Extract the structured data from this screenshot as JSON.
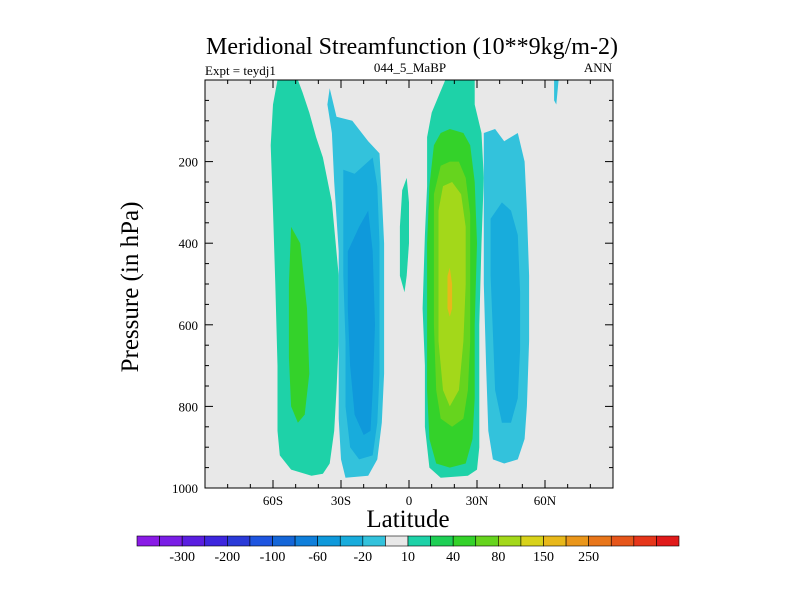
{
  "chart_data": {
    "type": "heatmap",
    "title": "Meridional Streamfunction (10**9kg/m-2)",
    "left_subtitle": "Expt = teydj1",
    "center_subtitle": "044_5_MaBP",
    "right_subtitle": "ANN",
    "xlabel": "Latitude",
    "ylabel": "Pressure (in hPa)",
    "xlim": [
      -90,
      90
    ],
    "ylim": [
      0,
      1000
    ],
    "y_inverted": true,
    "x_ticks": [
      {
        "value": -60,
        "label": "60S"
      },
      {
        "value": -30,
        "label": "30S"
      },
      {
        "value": 0,
        "label": "0"
      },
      {
        "value": 30,
        "label": "30N"
      },
      {
        "value": 60,
        "label": "60N"
      }
    ],
    "y_ticks": [
      200,
      400,
      600,
      800,
      1000
    ],
    "colorbar": {
      "colors": [
        "#8a1be6",
        "#7a1ee6",
        "#5a1ee0",
        "#3d26de",
        "#2a3ad8",
        "#1e55e0",
        "#1466d8",
        "#0f7fdb",
        "#0f99db",
        "#18acdc",
        "#33c2dc",
        "#e8e8e8",
        "#1ed2a8",
        "#1ecf55",
        "#34d22a",
        "#66d41e",
        "#a3d81a",
        "#d8d21a",
        "#e8b81a",
        "#ea961a",
        "#e8761a",
        "#e6561a",
        "#e6361a",
        "#e01a1a"
      ],
      "labels": [
        "-300",
        "-200",
        "-100",
        "-60",
        "-20",
        "10",
        "40",
        "80",
        "150",
        "250"
      ]
    },
    "contours": [
      {
        "color": "#1ed2a8",
        "points": [
          [
            -58,
            0
          ],
          [
            -49,
            0
          ],
          [
            -47,
            30
          ],
          [
            -44,
            80
          ],
          [
            -41,
            140
          ],
          [
            -38,
            190
          ],
          [
            -34,
            300
          ],
          [
            -31,
            480
          ],
          [
            -31,
            640
          ],
          [
            -32,
            760
          ],
          [
            -33,
            860
          ],
          [
            -35,
            940
          ],
          [
            -38,
            965
          ],
          [
            -43,
            970
          ],
          [
            -52,
            955
          ],
          [
            -57,
            920
          ],
          [
            -58,
            860
          ],
          [
            -58,
            700
          ],
          [
            -59,
            500
          ],
          [
            -60,
            320
          ],
          [
            -61,
            160
          ],
          [
            -60,
            60
          ]
        ]
      },
      {
        "color": "#34d22a",
        "points": [
          [
            -52,
            360
          ],
          [
            -48,
            400
          ],
          [
            -45,
            560
          ],
          [
            -44,
            720
          ],
          [
            -46,
            820
          ],
          [
            -49,
            840
          ],
          [
            -52,
            800
          ],
          [
            -53,
            680
          ],
          [
            -53,
            500
          ]
        ]
      },
      {
        "color": "#33c2dc",
        "points": [
          [
            -35,
            20
          ],
          [
            -32,
            90
          ],
          [
            -25,
            100
          ],
          [
            -18,
            150
          ],
          [
            -13,
            180
          ],
          [
            -12,
            280
          ],
          [
            -11,
            400
          ],
          [
            -11,
            560
          ],
          [
            -11,
            720
          ],
          [
            -12,
            840
          ],
          [
            -14,
            930
          ],
          [
            -18,
            970
          ],
          [
            -28,
            975
          ],
          [
            -30,
            930
          ],
          [
            -31,
            830
          ],
          [
            -31,
            600
          ],
          [
            -31,
            420
          ],
          [
            -33,
            250
          ],
          [
            -34,
            130
          ],
          [
            -36,
            60
          ]
        ]
      },
      {
        "color": "#18acdc",
        "points": [
          [
            -29,
            220
          ],
          [
            -24,
            230
          ],
          [
            -16,
            190
          ],
          [
            -14,
            260
          ],
          [
            -13,
            400
          ],
          [
            -13,
            560
          ],
          [
            -13,
            720
          ],
          [
            -14,
            840
          ],
          [
            -16,
            920
          ],
          [
            -22,
            930
          ],
          [
            -26,
            900
          ],
          [
            -28,
            800
          ],
          [
            -28,
            640
          ],
          [
            -29,
            480
          ],
          [
            -29,
            340
          ]
        ]
      },
      {
        "color": "#0f99db",
        "points": [
          [
            -27,
            420
          ],
          [
            -22,
            360
          ],
          [
            -18,
            320
          ],
          [
            -16,
            420
          ],
          [
            -15,
            600
          ],
          [
            -16,
            760
          ],
          [
            -17,
            860
          ],
          [
            -20,
            870
          ],
          [
            -24,
            820
          ],
          [
            -26,
            700
          ],
          [
            -27,
            560
          ]
        ]
      },
      {
        "color": "#1ed2a8",
        "points": [
          [
            -4,
            360
          ],
          [
            -3,
            270
          ],
          [
            -1,
            240
          ],
          [
            0,
            300
          ],
          [
            0,
            400
          ],
          [
            -1,
            480
          ],
          [
            -2,
            520
          ],
          [
            -4,
            480
          ]
        ]
      },
      {
        "color": "#1ed2a8",
        "points": [
          [
            7,
            380
          ],
          [
            8,
            260
          ],
          [
            8,
            140
          ],
          [
            10,
            80
          ],
          [
            13,
            40
          ],
          [
            16,
            0
          ],
          [
            29,
            0
          ],
          [
            29,
            60
          ],
          [
            32,
            130
          ],
          [
            33,
            240
          ],
          [
            32,
            400
          ],
          [
            31,
            600
          ],
          [
            31,
            780
          ],
          [
            31,
            900
          ],
          [
            30,
            955
          ],
          [
            26,
            970
          ],
          [
            14,
            975
          ],
          [
            9,
            950
          ],
          [
            7,
            850
          ],
          [
            7,
            700
          ],
          [
            6,
            560
          ]
        ]
      },
      {
        "color": "#34d22a",
        "points": [
          [
            8,
            400
          ],
          [
            9,
            260
          ],
          [
            11,
            160
          ],
          [
            14,
            130
          ],
          [
            18,
            120
          ],
          [
            24,
            130
          ],
          [
            27,
            160
          ],
          [
            29,
            250
          ],
          [
            30,
            400
          ],
          [
            29,
            600
          ],
          [
            29,
            780
          ],
          [
            28,
            880
          ],
          [
            25,
            940
          ],
          [
            18,
            950
          ],
          [
            12,
            940
          ],
          [
            9,
            880
          ],
          [
            8,
            760
          ],
          [
            8,
            600
          ]
        ]
      },
      {
        "color": "#66d41e",
        "points": [
          [
            11,
            420
          ],
          [
            11,
            280
          ],
          [
            14,
            210
          ],
          [
            18,
            200
          ],
          [
            22,
            200
          ],
          [
            25,
            240
          ],
          [
            27,
            330
          ],
          [
            27,
            480
          ],
          [
            27,
            640
          ],
          [
            26,
            760
          ],
          [
            24,
            830
          ],
          [
            19,
            850
          ],
          [
            14,
            830
          ],
          [
            12,
            760
          ],
          [
            11,
            600
          ]
        ]
      },
      {
        "color": "#a3d81a",
        "points": [
          [
            13,
            440
          ],
          [
            13,
            320
          ],
          [
            15,
            260
          ],
          [
            19,
            250
          ],
          [
            23,
            280
          ],
          [
            25,
            360
          ],
          [
            25,
            500
          ],
          [
            24,
            640
          ],
          [
            22,
            760
          ],
          [
            18,
            800
          ],
          [
            15,
            760
          ],
          [
            13,
            640
          ]
        ]
      },
      {
        "color": "#e8b81a",
        "points": [
          [
            17,
            480
          ],
          [
            18,
            460
          ],
          [
            19,
            500
          ],
          [
            19,
            560
          ],
          [
            18,
            580
          ],
          [
            17,
            560
          ]
        ]
      },
      {
        "color": "#33c2dc",
        "points": [
          [
            33,
            130
          ],
          [
            38,
            120
          ],
          [
            42,
            150
          ],
          [
            48,
            130
          ],
          [
            51,
            200
          ],
          [
            52,
            320
          ],
          [
            53,
            480
          ],
          [
            53,
            640
          ],
          [
            52,
            800
          ],
          [
            51,
            880
          ],
          [
            48,
            930
          ],
          [
            42,
            940
          ],
          [
            37,
            930
          ],
          [
            35,
            860
          ],
          [
            34,
            700
          ],
          [
            33,
            500
          ],
          [
            33,
            300
          ]
        ]
      },
      {
        "color": "#18acdc",
        "points": [
          [
            36,
            340
          ],
          [
            41,
            300
          ],
          [
            45,
            320
          ],
          [
            48,
            380
          ],
          [
            49,
            520
          ],
          [
            49,
            660
          ],
          [
            48,
            780
          ],
          [
            45,
            840
          ],
          [
            41,
            840
          ],
          [
            38,
            760
          ],
          [
            37,
            620
          ],
          [
            36,
            480
          ]
        ]
      },
      {
        "color": "#1ed2a8",
        "points": [
          [
            19,
            0
          ],
          [
            23,
            0
          ],
          [
            22,
            20
          ],
          [
            20,
            20
          ]
        ]
      },
      {
        "color": "#33c2dc",
        "points": [
          [
            64,
            0
          ],
          [
            66,
            0
          ],
          [
            65,
            60
          ],
          [
            64,
            50
          ]
        ]
      }
    ]
  }
}
